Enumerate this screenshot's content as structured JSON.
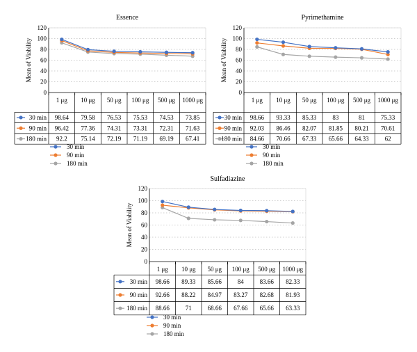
{
  "colors": {
    "30 min": "#4472c4",
    "90 min": "#ed7d31",
    "180 min": "#a5a5a5",
    "grid": "#bfbfbf",
    "axis": "#000000"
  },
  "chart_data": [
    {
      "type": "line",
      "title": "Essence",
      "ylabel": "Mean of Viability",
      "ylim": [
        0,
        120
      ],
      "yticks": [
        "0",
        "20",
        "40",
        "60",
        "80",
        "100",
        "120"
      ],
      "categories": [
        "1 μg",
        "10 μg",
        "50 μg",
        "100 μg",
        "500 μg",
        "1000 μg"
      ],
      "grid": true,
      "legend": "bottom",
      "series": [
        {
          "name": "30 min",
          "values": [
            98.64,
            79.58,
            76.53,
            75.53,
            74.53,
            73.85
          ],
          "labels": [
            "98.64",
            "79.58",
            "76.53",
            "75.53",
            "74.53",
            "73.85"
          ]
        },
        {
          "name": "90 min",
          "values": [
            96.42,
            77.36,
            74.31,
            73.31,
            72.31,
            71.63
          ],
          "labels": [
            "96.42",
            "77.36",
            "74.31",
            "73.31",
            "72.31",
            "71.63"
          ]
        },
        {
          "name": "180 min",
          "values": [
            92.2,
            75.14,
            72.19,
            71.19,
            69.19,
            67.41
          ],
          "labels": [
            "92.2",
            "75.14",
            "72.19",
            "71.19",
            "69.19",
            "67.41"
          ]
        }
      ]
    },
    {
      "type": "line",
      "title": "Pyrimethamine",
      "ylabel": "Mean of Viability",
      "ylim": [
        0,
        120
      ],
      "yticks": [
        "0",
        "20",
        "40",
        "60",
        "80",
        "100",
        "120"
      ],
      "categories": [
        "1 μg",
        "10 μg",
        "50 μg",
        "100 μg",
        "500 μg",
        "1000 μg"
      ],
      "grid": true,
      "legend": "bottom",
      "series": [
        {
          "name": "30 min",
          "values": [
            98.66,
            93.33,
            85.33,
            83,
            81,
            75.33
          ],
          "labels": [
            "98.66",
            "93.33",
            "85.33",
            "83",
            "81",
            "75.33"
          ]
        },
        {
          "name": "90 min",
          "values": [
            92.03,
            86.46,
            82.07,
            81.85,
            80.21,
            70.61
          ],
          "labels": [
            "92.03",
            "86.46",
            "82.07",
            "81.85",
            "80.21",
            "70.61"
          ]
        },
        {
          "name": "180 min",
          "values": [
            84.66,
            70.66,
            67.33,
            65.66,
            64.33,
            62
          ],
          "labels": [
            "84.66",
            "70.66",
            "67.33",
            "65.66",
            "64.33",
            "62"
          ]
        }
      ]
    },
    {
      "type": "line",
      "title": "Sulfadiazine",
      "ylabel": "Mean of Viability",
      "ylim": [
        0,
        120
      ],
      "yticks": [
        "0",
        "20",
        "40",
        "60",
        "80",
        "100",
        "120"
      ],
      "categories": [
        "1 μg",
        "10 μg",
        "50 μg",
        "100 μg",
        "500 μg",
        "1000 μg"
      ],
      "grid": true,
      "legend": "bottom",
      "series": [
        {
          "name": "30 min",
          "values": [
            98.66,
            89.33,
            85.66,
            84,
            83.66,
            82.33
          ],
          "labels": [
            "98.66",
            "89.33",
            "85.66",
            "84",
            "83.66",
            "82.33"
          ]
        },
        {
          "name": "90 min",
          "values": [
            92.66,
            88.22,
            84.97,
            83.27,
            82.68,
            81.93
          ],
          "labels": [
            "92.66",
            "88.22",
            "84.97",
            "83.27",
            "82.68",
            "81.93"
          ]
        },
        {
          "name": "180 min",
          "values": [
            88.66,
            71,
            68.66,
            67.66,
            65.66,
            63.33
          ],
          "labels": [
            "88.66",
            "71",
            "68.66",
            "67.66",
            "65.66",
            "63.33"
          ]
        }
      ]
    }
  ]
}
